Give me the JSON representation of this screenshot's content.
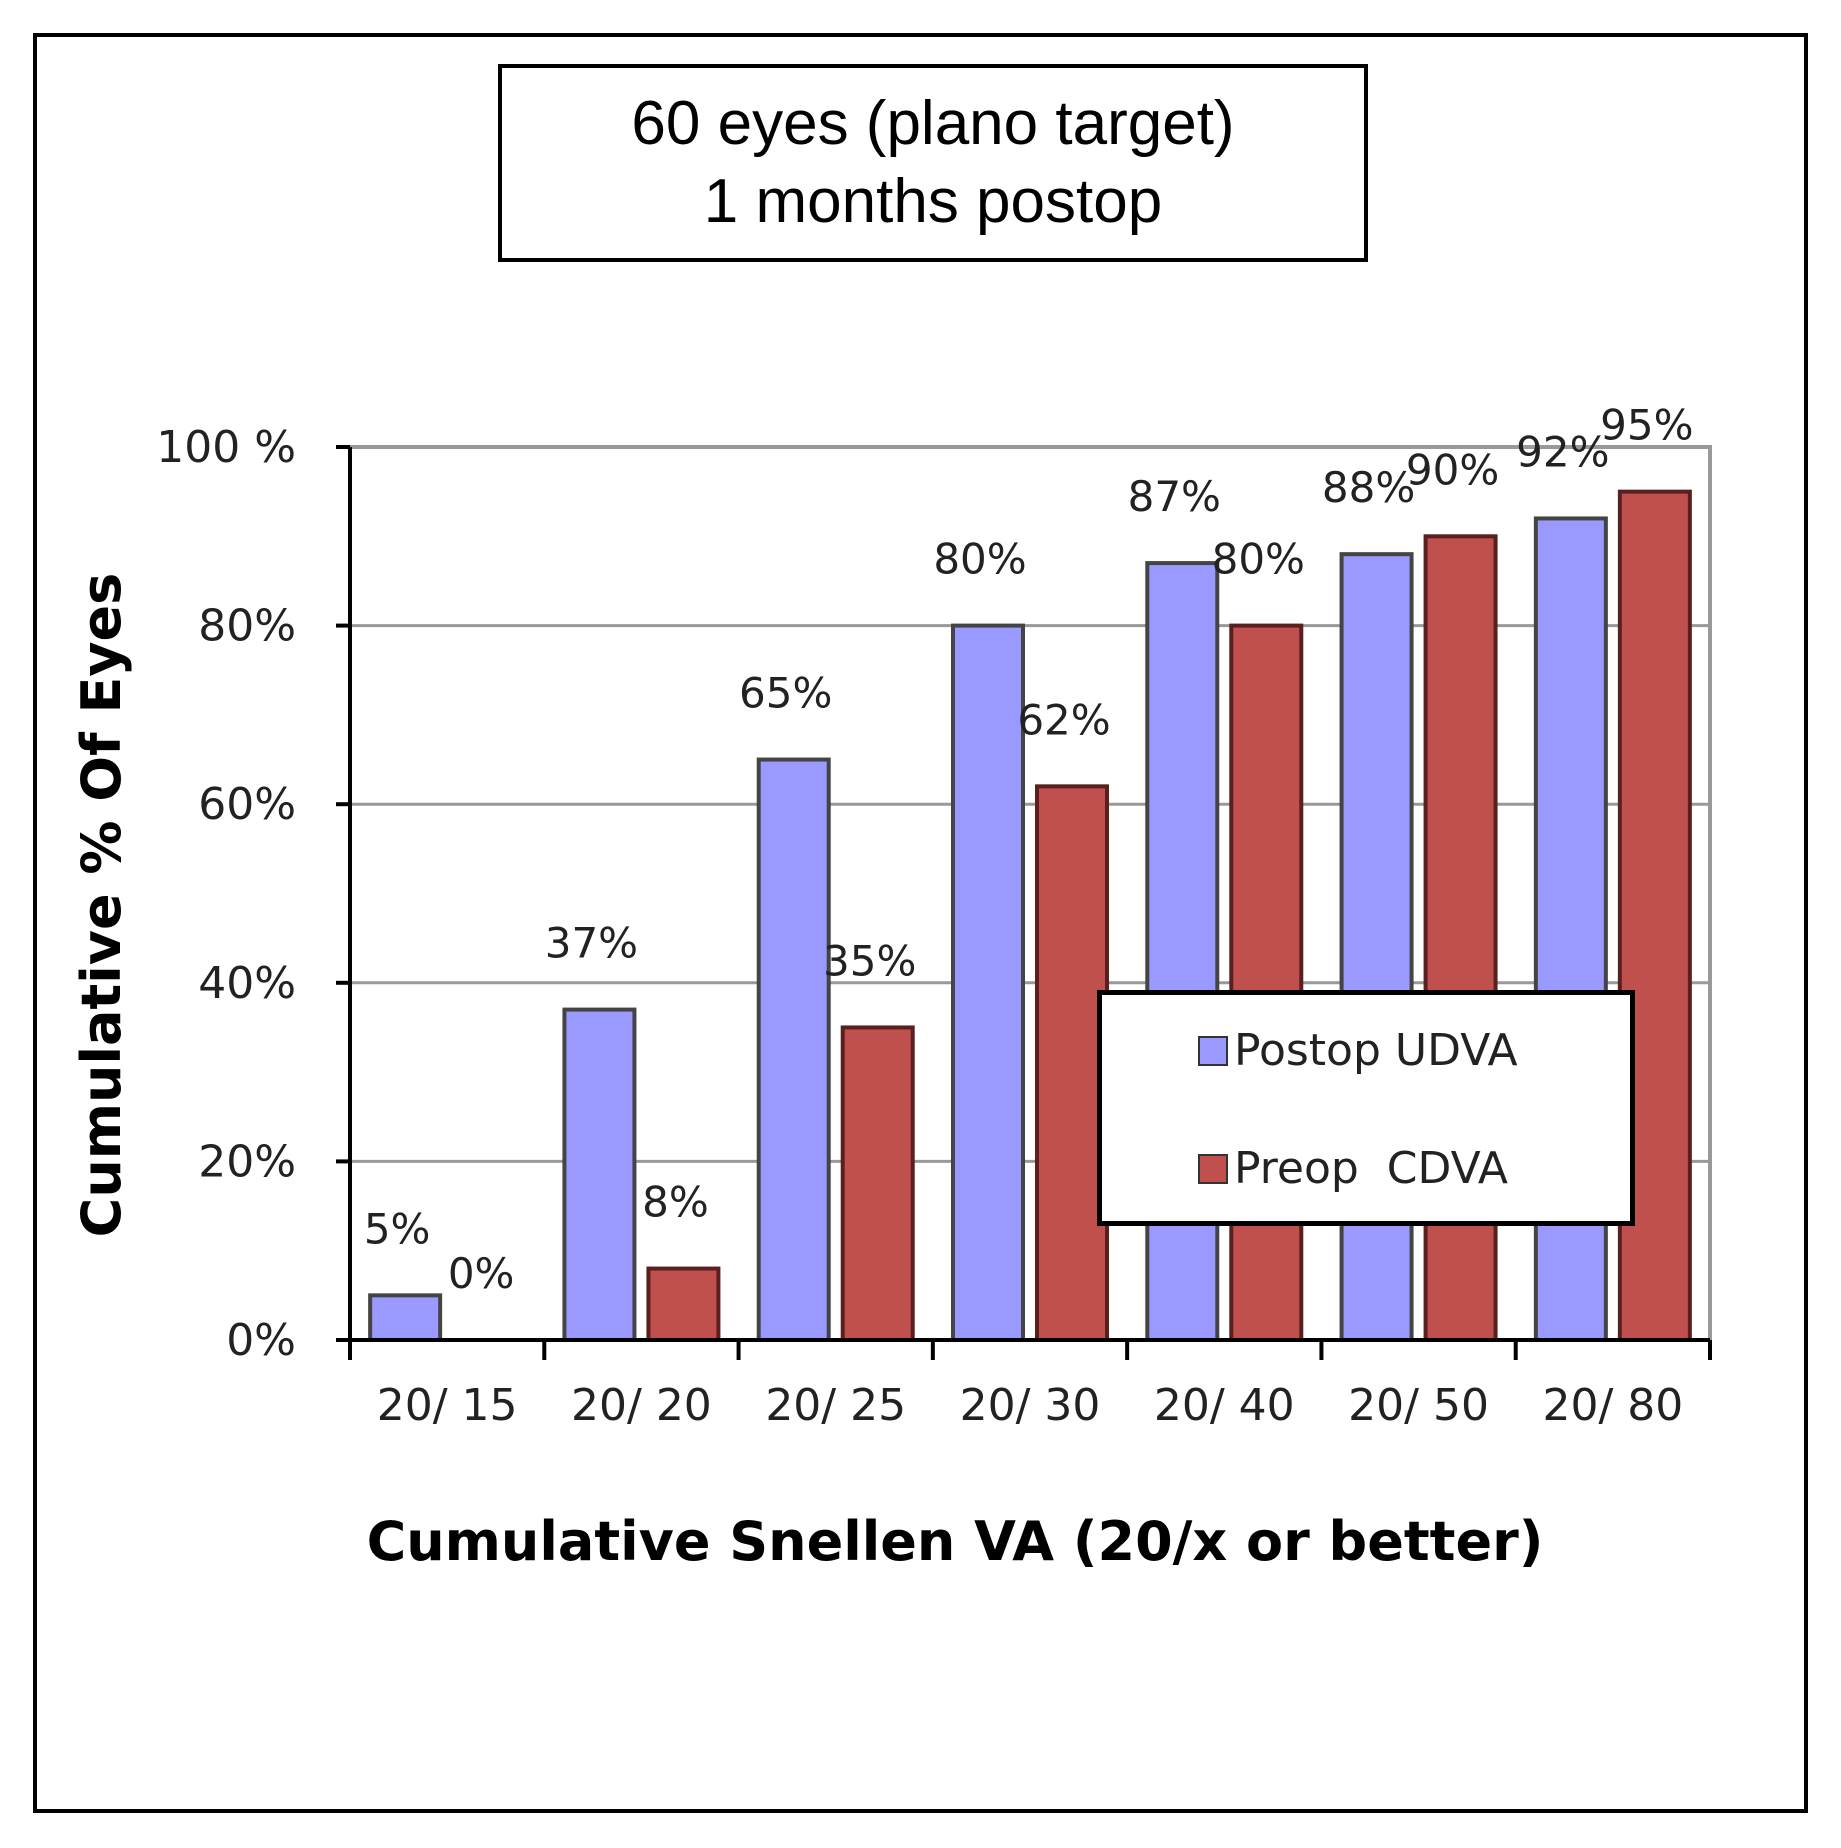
{
  "chart_data": {
    "type": "bar",
    "title_lines": [
      "60 eyes (plano target)",
      "1 months postop"
    ],
    "categories": [
      "20/ 15",
      "20/ 20",
      "20/ 25",
      "20/ 30",
      "20/ 40",
      "20/ 50",
      "20/ 80"
    ],
    "series": [
      {
        "name": "Postop UDVA",
        "color": "#9999ff",
        "values": [
          5,
          37,
          65,
          80,
          87,
          88,
          92
        ],
        "labels": [
          "5%",
          "37%",
          "65%",
          "80%",
          "87%",
          "88%",
          "92%"
        ]
      },
      {
        "name": "Preop  CDVA",
        "color": "#c0504d",
        "values": [
          0,
          8,
          35,
          62,
          80,
          90,
          95
        ],
        "labels": [
          "0%",
          "8%",
          "35%",
          "62%",
          "80%",
          "90%",
          "95%"
        ]
      }
    ],
    "ylim": [
      0,
      100
    ],
    "yticks": [
      0,
      20,
      40,
      60,
      80,
      100
    ],
    "ytick_labels": [
      "0%",
      "20%",
      "40%",
      "60%",
      "80%",
      "100 %"
    ],
    "xlabel": "Cumulative Snellen VA (20/x or better)",
    "ylabel": "Cumulative % Of Eyes",
    "grid": true,
    "legend_position": "lower-right"
  }
}
